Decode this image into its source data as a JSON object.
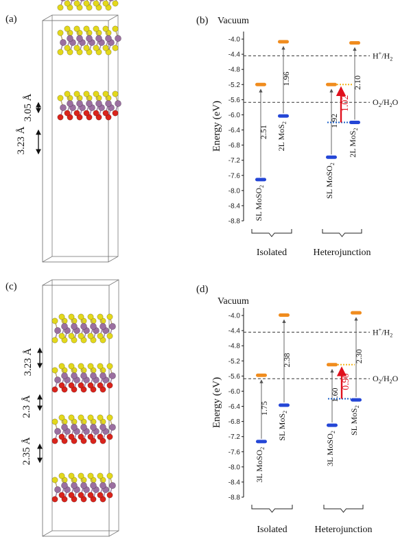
{
  "panels": [
    {
      "id": "a",
      "label": "(a)",
      "type": "crystal-structure",
      "spacings": [
        "3.05 Å",
        "3.23 Å"
      ],
      "layers": [
        {
          "type": "MoS2",
          "base": 245
        },
        {
          "type": "MoS2",
          "base": 180
        },
        {
          "type": "MoSO2",
          "base": 85
        }
      ]
    },
    {
      "id": "c",
      "label": "(c)",
      "type": "crystal-structure",
      "spacings": [
        "3.23 Å",
        "2.3 Å",
        "2.35 Å"
      ],
      "layers": [
        {
          "type": "MoS2",
          "base": 232
        },
        {
          "type": "MoSO2",
          "base": 160
        },
        {
          "type": "MoSO2",
          "base": 85
        },
        {
          "type": "MoSO2",
          "base": 0
        }
      ]
    }
  ],
  "colors": {
    "cbm": "#f08c1e",
    "vbm": "#2446d6",
    "highlight": "#e0101c",
    "dotted_orange": "#f4b41a",
    "dotted_blue": "#1a5fc8",
    "sulfur": "#e3d81c",
    "oxygen": "#d9241c",
    "molybdenum": "#9b6fa0",
    "box": "#777777"
  },
  "chart_data": [
    {
      "panel": "(b)",
      "type": "energy-level-diagram",
      "title": "Vacuum",
      "ylabel": "Energy (eV)",
      "ylim": [
        -8.8,
        -3.8
      ],
      "yticks": [
        "-4.0",
        "-4.4",
        "-4.8",
        "-5.2",
        "-5.6",
        "-6.0",
        "-6.4",
        "-6.8",
        "-7.2",
        "-7.6",
        "-8.0",
        "-8.4",
        "-8.8"
      ],
      "reference_lines": [
        {
          "label_main": "H",
          "label_sup": "+",
          "label_rest": "/H",
          "label_sub": "2",
          "y": -4.44
        },
        {
          "label_main": "O",
          "label_sub": "2",
          "label_rest": "/H",
          "label_sub2": "2",
          "label_tail": "O",
          "y": -5.67
        }
      ],
      "columns": [
        {
          "name": "SL MoSO",
          "sub": "2",
          "cbm": -5.2,
          "vbm": -7.71,
          "gap": "2.51",
          "group": 0
        },
        {
          "name": "2L MoS",
          "sub": "2",
          "cbm": -4.07,
          "vbm": -6.03,
          "gap": "1.96",
          "group": 0
        },
        {
          "name": "SL MoSO",
          "sub": "2",
          "cbm": -5.2,
          "vbm": -7.12,
          "gap": "1.92",
          "group": 1
        },
        {
          "name": "2L MoS",
          "sub": "2",
          "cbm": -4.1,
          "vbm": -6.2,
          "gap": "2.10",
          "group": 1
        }
      ],
      "offset": {
        "value": "1.02",
        "from": -6.2,
        "to": -5.2
      },
      "groups": [
        "Isolated",
        "Heterojunction"
      ]
    },
    {
      "panel": "(d)",
      "type": "energy-level-diagram",
      "title": "Vacuum",
      "ylabel": "Energy (eV)",
      "ylim": [
        -8.8,
        -3.8
      ],
      "yticks": [
        "-4.0",
        "-4.4",
        "-4.8",
        "-5.2",
        "-5.6",
        "-6.0",
        "-6.4",
        "-6.8",
        "-7.2",
        "-7.6",
        "-8.0",
        "-8.4",
        "-8.8"
      ],
      "reference_lines": [
        {
          "label_main": "H",
          "label_sup": "+",
          "label_rest": "/H",
          "label_sub": "2",
          "y": -4.44
        },
        {
          "label_main": "O",
          "label_sub": "2",
          "label_rest": "/H",
          "label_sub2": "2",
          "label_tail": "O",
          "y": -5.67
        }
      ],
      "columns": [
        {
          "name": "3L MoSO",
          "sub": "2",
          "cbm": -5.58,
          "vbm": -7.33,
          "gap": "1.75",
          "group": 0
        },
        {
          "name": "SL MoS",
          "sub": "2",
          "cbm": -3.99,
          "vbm": -6.37,
          "gap": "2.38",
          "group": 0
        },
        {
          "name": "3L MoSO",
          "sub": "2",
          "cbm": -5.3,
          "vbm": -6.9,
          "gap": "1.60",
          "group": 1
        },
        {
          "name": "SL MoS",
          "sub": "2",
          "cbm": -3.93,
          "vbm": -6.23,
          "gap": "2.30",
          "group": 1
        }
      ],
      "offset": {
        "value": "0.90",
        "from": -6.2,
        "to": -5.3
      },
      "groups": [
        "Isolated",
        "Heterojunction"
      ]
    }
  ]
}
